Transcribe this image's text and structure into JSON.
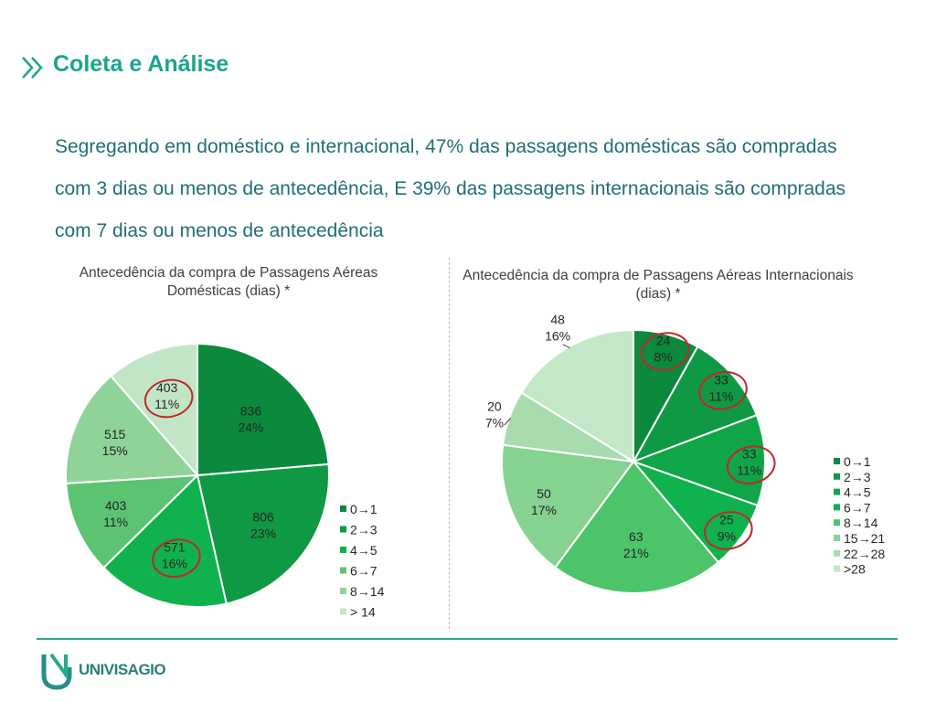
{
  "header": {
    "title": "Coleta e Análise"
  },
  "intro": "Segregando em doméstico e internacional, 47% das passagens domésticas são compradas com 3 dias ou menos de antecedência, E 39% das passagens internacionais são compradas com 7 dias ou menos de antecedência",
  "footer": {
    "brand": "UNIVISAGIO"
  },
  "chart_data": [
    {
      "type": "pie",
      "title": "Antecedência da compra de Passagens Aéreas Domésticas (dias) *",
      "slices": [
        {
          "label": "0→1",
          "value": 836,
          "percent": "24%",
          "color": "#0b8a3d"
        },
        {
          "label": "2→3",
          "value": 806,
          "percent": "23%",
          "color": "#0f9944"
        },
        {
          "label": "4→5",
          "value": 571,
          "percent": "16%",
          "color": "#10b24d",
          "circled": true
        },
        {
          "label": "6→7",
          "value": 403,
          "percent": "11%",
          "color": "#5cc371"
        },
        {
          "label": "8→14",
          "value": 515,
          "percent": "15%",
          "color": "#8fd398"
        },
        {
          "label": "> 14",
          "value": 403,
          "percent": "11%",
          "color": "#c2e6c5",
          "circled": true
        }
      ],
      "legend_position": "right"
    },
    {
      "type": "pie",
      "title": "Antecedência da compra de Passagens Aéreas Internacionais (dias) *",
      "slices": [
        {
          "label": "0→1",
          "value": 24,
          "percent": "8%",
          "color": "#0b8a3d",
          "circled": true
        },
        {
          "label": "2→3",
          "value": 33,
          "percent": "11%",
          "color": "#0f9944",
          "circled": true
        },
        {
          "label": "4→5",
          "value": 33,
          "percent": "11%",
          "color": "#0fa647",
          "circled": true
        },
        {
          "label": "6→7",
          "value": 25,
          "percent": "9%",
          "color": "#10b24d",
          "circled": true
        },
        {
          "label": "8→14",
          "value": 63,
          "percent": "21%",
          "color": "#4cc46a"
        },
        {
          "label": "15→21",
          "value": 50,
          "percent": "17%",
          "color": "#86d291"
        },
        {
          "label": "22→28",
          "value": 20,
          "percent": "7%",
          "color": "#a8dcae"
        },
        {
          "label": ">28",
          "value": 48,
          "percent": "16%",
          "color": "#c4e7c7"
        }
      ],
      "legend_position": "right"
    }
  ]
}
